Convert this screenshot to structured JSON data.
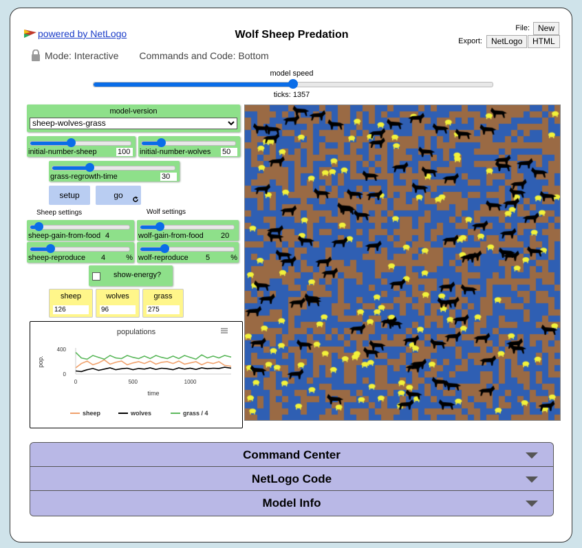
{
  "header": {
    "logo_text": "powered by NetLogo",
    "title": "Wolf Sheep Predation",
    "mode": "Mode: Interactive",
    "commands_position": "Commands and Code: Bottom",
    "file_label": "File:",
    "file_new": "New",
    "export_label": "Export:",
    "export_netlogo": "NetLogo",
    "export_html": "HTML"
  },
  "speed": {
    "label": "model speed",
    "ticks_text": "ticks: 1357",
    "level": 0.5
  },
  "chooser": {
    "label": "model-version",
    "value": "sheep-wolves-grass",
    "options": [
      "sheep-wolves-grass"
    ]
  },
  "sliders": {
    "initial_sheep": {
      "name": "initial-number-sheep",
      "value": "100",
      "level": 0.4
    },
    "initial_wolves": {
      "name": "initial-number-wolves",
      "value": "50",
      "level": 0.2
    },
    "grass_regrowth": {
      "name": "grass-regrowth-time",
      "value": "30",
      "level": 0.3
    },
    "sheep_gain": {
      "name": "sheep-gain-from-food",
      "value": "4",
      "level": 0.08
    },
    "wolf_gain": {
      "name": "wolf-gain-from-food",
      "value": "20",
      "level": 0.2
    },
    "sheep_reproduce": {
      "name": "sheep-reproduce",
      "value": "4",
      "unit": "%",
      "level": 0.2
    },
    "wolf_reproduce": {
      "name": "wolf-reproduce",
      "value": "5",
      "unit": "%",
      "level": 0.25
    }
  },
  "buttons": {
    "setup": "setup",
    "go": "go",
    "go_icon": "forever-icon"
  },
  "notes": {
    "sheep_settings": "Sheep settings",
    "wolf_settings": "Wolf settings"
  },
  "switch": {
    "label": "show-energy?",
    "checked": false
  },
  "monitors": [
    {
      "label": "sheep",
      "value": "126"
    },
    {
      "label": "wolves",
      "value": "96"
    },
    {
      "label": "grass",
      "value": "275"
    }
  ],
  "plot": {
    "title": "populations",
    "menu_icon": "hamburger-icon",
    "chart_data": {
      "type": "line",
      "title": "populations",
      "xlabel": "time",
      "ylabel": "pop.",
      "xlim": [
        0,
        1357
      ],
      "ylim": [
        0,
        400
      ],
      "x_ticks": [
        "0",
        "500",
        "1000"
      ],
      "y_ticks": [
        "0",
        "400"
      ],
      "legend_position": "bottom",
      "series": [
        {
          "name": "sheep",
          "color": "#f0a06a",
          "x": [
            0,
            50,
            100,
            150,
            200,
            250,
            300,
            350,
            400,
            450,
            500,
            550,
            600,
            650,
            700,
            750,
            800,
            850,
            900,
            950,
            1000,
            1050,
            1100,
            1150,
            1200,
            1250,
            1300,
            1357
          ],
          "y": [
            100,
            170,
            210,
            150,
            180,
            230,
            160,
            190,
            210,
            150,
            180,
            200,
            170,
            210,
            160,
            190,
            200,
            170,
            210,
            160,
            180,
            200,
            150,
            190,
            170,
            200,
            140,
            126
          ]
        },
        {
          "name": "wolves",
          "color": "#000000",
          "x": [
            0,
            50,
            100,
            150,
            200,
            250,
            300,
            350,
            400,
            450,
            500,
            550,
            600,
            650,
            700,
            750,
            800,
            850,
            900,
            950,
            1000,
            1050,
            1100,
            1150,
            1200,
            1250,
            1300,
            1357
          ],
          "y": [
            50,
            40,
            70,
            90,
            60,
            80,
            100,
            70,
            85,
            95,
            70,
            90,
            80,
            100,
            75,
            95,
            85,
            70,
            100,
            80,
            95,
            75,
            100,
            85,
            95,
            90,
            110,
            96
          ]
        },
        {
          "name": "grass / 4",
          "color": "#5cb85c",
          "x": [
            0,
            50,
            100,
            150,
            200,
            250,
            300,
            350,
            400,
            450,
            500,
            550,
            600,
            650,
            700,
            750,
            800,
            850,
            900,
            950,
            1000,
            1050,
            1100,
            1150,
            1200,
            1250,
            1300,
            1357
          ],
          "y": [
            350,
            260,
            240,
            300,
            270,
            240,
            300,
            260,
            250,
            300,
            270,
            250,
            290,
            250,
            300,
            270,
            250,
            290,
            250,
            300,
            270,
            240,
            310,
            260,
            290,
            260,
            300,
            275
          ]
        }
      ]
    }
  },
  "view": {
    "grass_color": "#2f5fb3",
    "dirt_color": "#9a6a44",
    "sheep_color": "#f2f23a",
    "wolf_color": "#000000"
  },
  "accordions": [
    {
      "label": "Command Center"
    },
    {
      "label": "NetLogo Code"
    },
    {
      "label": "Model Info"
    }
  ]
}
